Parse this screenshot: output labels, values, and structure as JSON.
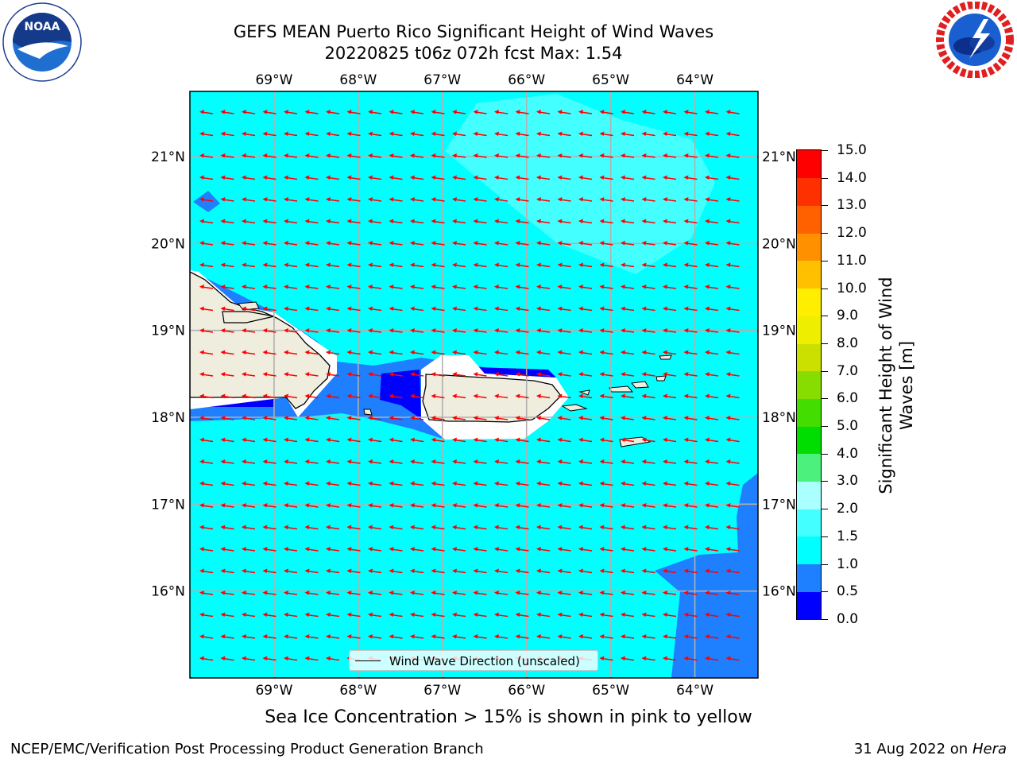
{
  "title": {
    "line1": "GEFS MEAN Puerto Rico Significant Height of Wind Waves",
    "line2": "20220825 t06z 072h fcst   Max: 1.54"
  },
  "footer": {
    "subtitle": "Sea Ice Concentration > 15% is shown in pink to yellow",
    "left": "NCEP/EMC/Verification Post Processing Product Generation Branch",
    "date": "31 Aug 2022 on",
    "host": "Hera"
  },
  "legend": {
    "label": "Wind Wave Direction (unscaled)",
    "line_color": "#000000"
  },
  "logos": {
    "left": "noaa-logo",
    "right": "nws-logo"
  },
  "map": {
    "lon_range": [
      -70.0,
      -63.25
    ],
    "lat_range": [
      15.0,
      21.75
    ],
    "lon_ticks": [
      "69°W",
      "68°W",
      "67°W",
      "66°W",
      "65°W",
      "64°W"
    ],
    "lat_ticks": [
      "21°N",
      "20°N",
      "19°N",
      "18°N",
      "17°N",
      "16°N"
    ],
    "grid": true,
    "arrow_color": "#ff0000",
    "land_color": "#efedde",
    "sea_color": "#00ffff"
  },
  "colorbar": {
    "title": "Significant Height of Wind Waves [m]",
    "ticks": [
      "0.0",
      "0.5",
      "1.0",
      "1.5",
      "2.0",
      "3.0",
      "4.0",
      "5.0",
      "6.0",
      "7.0",
      "8.0",
      "9.0",
      "10.0",
      "11.0",
      "12.0",
      "13.0",
      "14.0",
      "15.0"
    ],
    "colors": [
      "#0000ff",
      "#1e7fff",
      "#00ffff",
      "#44ffff",
      "#aaffff",
      "#4cf07c",
      "#00dd00",
      "#44dd00",
      "#88dd00",
      "#cce000",
      "#eeee00",
      "#ffee00",
      "#ffc000",
      "#ff9000",
      "#ff6000",
      "#ff3000",
      "#ff0000"
    ]
  }
}
